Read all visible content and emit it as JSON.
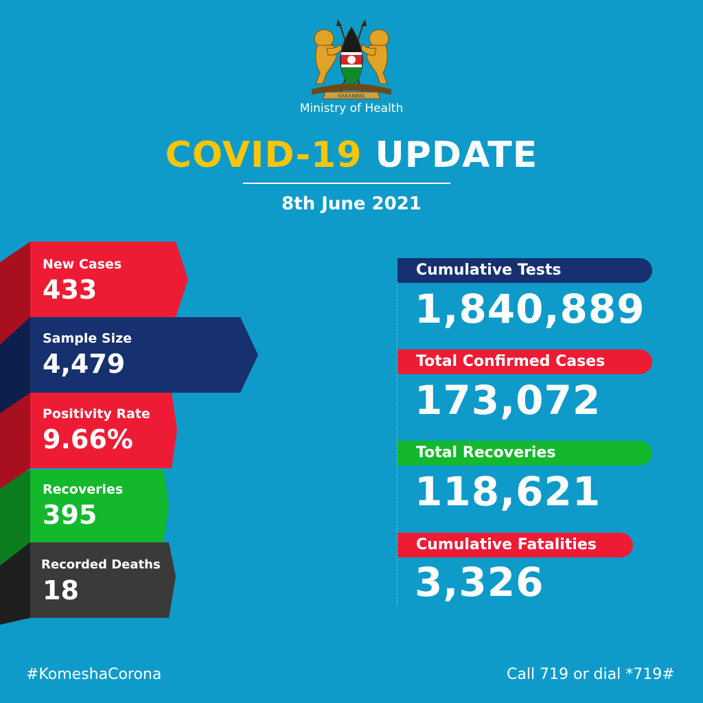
{
  "header": {
    "ministry": "Ministry of Health",
    "title_highlight": "COVID-19",
    "title_rest": "UPDATE",
    "date": "8th June 2021",
    "emblem_motto": "HARAMBEE"
  },
  "colors": {
    "background": "#0e9bc9",
    "yellow": "#f9c50b",
    "red": "#ed1c34",
    "navy": "#17306f",
    "green": "#14b82c",
    "dark": "#3a3a3a"
  },
  "daily": [
    {
      "label": "New Cases",
      "value": "433"
    },
    {
      "label": "Sample Size",
      "value": "4,479"
    },
    {
      "label": "Positivity Rate",
      "value": "9.66%"
    },
    {
      "label": "Recoveries",
      "value": "395"
    },
    {
      "label": "Recorded Deaths",
      "value": "18"
    }
  ],
  "cumulative": [
    {
      "label": "Cumulative Tests",
      "value": "1,840,889"
    },
    {
      "label": "Total Confirmed Cases",
      "value": "173,072"
    },
    {
      "label": "Total Recoveries",
      "value": "118,621"
    },
    {
      "label": "Cumulative Fatalities",
      "value": "3,326"
    }
  ],
  "footer": {
    "hashtag": "#KomeshaCorona",
    "hotline": "Call 719 or dial *719#"
  }
}
